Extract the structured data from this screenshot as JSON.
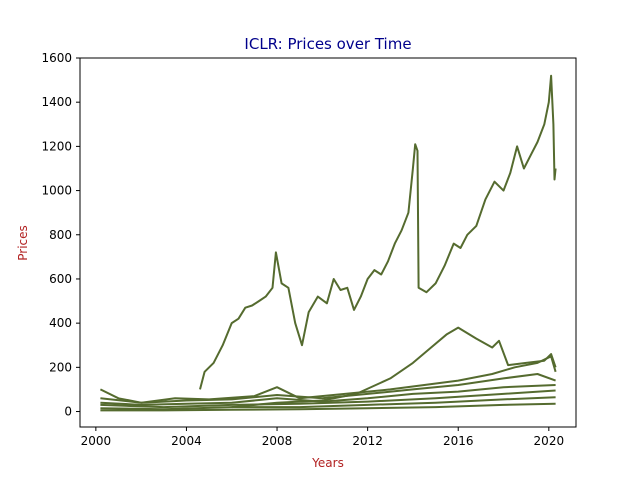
{
  "chart_data": {
    "type": "line",
    "title": "ICLR: Prices over Time",
    "xlabel": "Years",
    "ylabel": "Prices",
    "xlim": [
      1999.3,
      2021.2
    ],
    "ylim": [
      -70,
      1600
    ],
    "x_ticks": [
      2000,
      2004,
      2008,
      2012,
      2016,
      2020
    ],
    "x_tick_labels": [
      "2000",
      "2004",
      "2008",
      "2012",
      "2016",
      "2020"
    ],
    "y_ticks": [
      0,
      200,
      400,
      600,
      800,
      1000,
      1200,
      1400,
      1600
    ],
    "y_tick_labels": [
      "0",
      "200",
      "400",
      "600",
      "800",
      "1000",
      "1200",
      "1400",
      "1600"
    ],
    "grid": false,
    "legend": "none",
    "line_color": "#556b2f",
    "title_color": "#00008b",
    "label_color": "#b22222",
    "series": [
      {
        "x": [
          2004.6,
          2004.8,
          2005.2,
          2005.6,
          2006.0,
          2006.3,
          2006.6,
          2006.9,
          2007.2,
          2007.5,
          2007.8,
          2007.95,
          2008.2,
          2008.5,
          2008.8,
          2009.1,
          2009.4,
          2009.8,
          2010.2,
          2010.5,
          2010.8,
          2011.1,
          2011.4,
          2011.7,
          2012.0,
          2012.3,
          2012.6,
          2012.9,
          2013.2,
          2013.5,
          2013.8,
          2014.0,
          2014.1,
          2014.2,
          2014.25,
          2014.6,
          2015.0,
          2015.4,
          2015.8,
          2016.1,
          2016.4,
          2016.8,
          2017.2,
          2017.6,
          2018.0,
          2018.3,
          2018.6,
          2018.9,
          2019.2,
          2019.5,
          2019.8,
          2020.0,
          2020.1,
          2020.2,
          2020.25,
          2020.3
        ],
        "y": [
          100,
          180,
          220,
          300,
          400,
          420,
          470,
          480,
          500,
          520,
          560,
          720,
          580,
          560,
          400,
          300,
          450,
          520,
          490,
          600,
          550,
          560,
          460,
          520,
          600,
          640,
          620,
          680,
          760,
          820,
          900,
          1100,
          1210,
          1180,
          560,
          540,
          580,
          660,
          760,
          740,
          800,
          840,
          960,
          1040,
          1000,
          1080,
          1200,
          1100,
          1160,
          1220,
          1300,
          1400,
          1520,
          1300,
          1050,
          1100
        ]
      },
      {
        "x": [
          2006.0,
          2008.0,
          2010.0,
          2011.5,
          2013.0,
          2014.0,
          2014.8,
          2015.5,
          2016.0,
          2016.8,
          2017.5,
          2017.8,
          2018.2,
          2019.0,
          2019.8,
          2020.1,
          2020.3
        ],
        "y": [
          20,
          40,
          50,
          80,
          150,
          220,
          290,
          350,
          380,
          330,
          290,
          320,
          210,
          220,
          230,
          260,
          200
        ]
      },
      {
        "x": [
          2000.2,
          2001.0,
          2002.0,
          2003.5,
          2005.0,
          2007.0,
          2008.0,
          2009.0,
          2011.0,
          2013.0,
          2014.5,
          2016.0,
          2017.5,
          2018.5,
          2019.5,
          2020.1,
          2020.3
        ],
        "y": [
          100,
          60,
          40,
          60,
          55,
          70,
          110,
          60,
          80,
          100,
          120,
          140,
          170,
          200,
          220,
          250,
          180
        ]
      },
      {
        "x": [
          2000.2,
          2002.0,
          2004.0,
          2006.0,
          2008.0,
          2010.0,
          2012.0,
          2014.0,
          2016.0,
          2018.0,
          2019.5,
          2020.3
        ],
        "y": [
          60,
          40,
          50,
          55,
          75,
          60,
          80,
          100,
          120,
          150,
          170,
          140
        ]
      },
      {
        "x": [
          2000.2,
          2002.0,
          2004.0,
          2006.0,
          2008.0,
          2010.0,
          2012.0,
          2014.0,
          2016.0,
          2018.0,
          2020.3
        ],
        "y": [
          40,
          30,
          35,
          40,
          60,
          45,
          60,
          80,
          90,
          110,
          120
        ]
      },
      {
        "x": [
          2000.2,
          2003.0,
          2006.0,
          2009.0,
          2012.0,
          2015.0,
          2018.0,
          2020.3
        ],
        "y": [
          30,
          20,
          30,
          35,
          45,
          60,
          80,
          95
        ]
      },
      {
        "x": [
          2000.2,
          2003.0,
          2006.0,
          2009.0,
          2012.0,
          2015.0,
          2018.0,
          2020.3
        ],
        "y": [
          15,
          10,
          20,
          20,
          30,
          40,
          55,
          65
        ]
      },
      {
        "x": [
          2000.2,
          2003.0,
          2006.0,
          2009.0,
          2012.0,
          2015.0,
          2018.0,
          2020.3
        ],
        "y": [
          5,
          5,
          8,
          10,
          15,
          20,
          30,
          35
        ]
      }
    ]
  }
}
